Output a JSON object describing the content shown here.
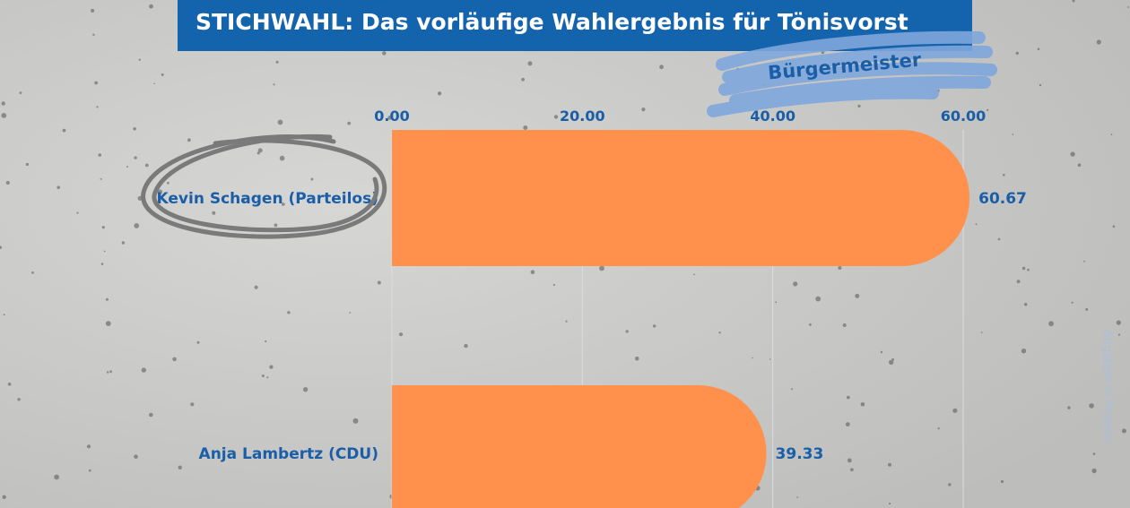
{
  "title": "STICHWAHL: Das vorläufige Wahlergebnis für Tönisvorst",
  "badge": "Bürgermeister",
  "note": "Angaben in Prozent",
  "colors": {
    "bar": "#ff914d",
    "title_bg": "#1463ad",
    "text": "#1a5ea8",
    "ellipse": "#7a7a7a",
    "badge_scribble": "#7ea6dc"
  },
  "chart_data": {
    "type": "bar",
    "orientation": "horizontal",
    "title": "STICHWAHL: Das vorläufige Wahlergebnis für Tönisvorst",
    "subtitle": "Bürgermeister",
    "categories": [
      "Kevin Schagen (Parteilos)",
      "Anja Lambertz (CDU)"
    ],
    "values": [
      60.67,
      39.33
    ],
    "value_labels": [
      "60.67",
      "39.33"
    ],
    "xlim": [
      0,
      60
    ],
    "x_ticks": [
      0,
      20,
      40,
      60
    ],
    "x_tick_labels": [
      "0.00",
      "20.00",
      "40.00",
      "60.00"
    ],
    "xlabel": "",
    "ylabel": "",
    "grid": true,
    "highlighted_category": "Kevin Schagen (Parteilos)"
  }
}
